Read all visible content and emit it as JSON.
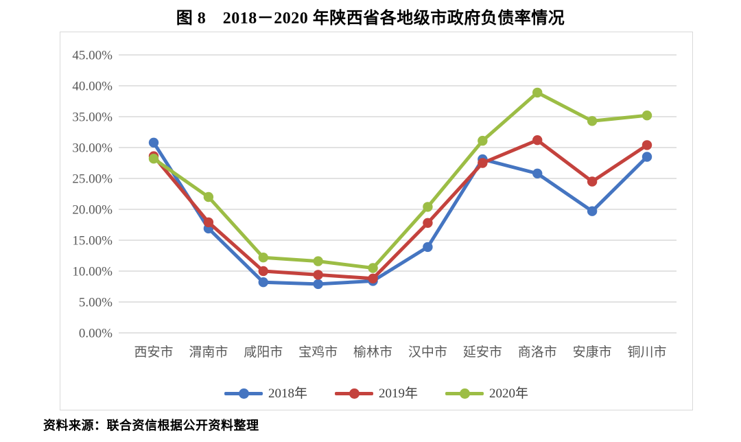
{
  "figure": {
    "title": "图 8　2018－2020 年陕西省各地级市政府负债率情况",
    "source_note": "资料来源：联合资信根据公开资料整理"
  },
  "chart_data": {
    "type": "line",
    "title": "图 8　2018－2020 年陕西省各地级市政府负债率情况",
    "categories": [
      "西安市",
      "渭南市",
      "咸阳市",
      "宝鸡市",
      "榆林市",
      "汉中市",
      "延安市",
      "商洛市",
      "安康市",
      "铜川市"
    ],
    "series": [
      {
        "name": "2018年",
        "color": "#4575C1",
        "values": [
          30.8,
          16.9,
          8.2,
          7.9,
          8.4,
          13.9,
          28.1,
          25.8,
          19.7,
          28.5
        ]
      },
      {
        "name": "2019年",
        "color": "#C4423D",
        "values": [
          28.6,
          17.9,
          10.0,
          9.4,
          8.8,
          17.8,
          27.5,
          31.2,
          24.5,
          30.4
        ]
      },
      {
        "name": "2020年",
        "color": "#9CBD45",
        "values": [
          28.2,
          22.0,
          12.2,
          11.6,
          10.5,
          20.4,
          31.1,
          38.9,
          34.3,
          35.2
        ]
      }
    ],
    "xlabel": "",
    "ylabel": "",
    "ylim": [
      0,
      45
    ],
    "ytick_step": 5,
    "ytick_labels": [
      "0.00%",
      "5.00%",
      "10.00%",
      "15.00%",
      "20.00%",
      "25.00%",
      "30.00%",
      "35.00%",
      "40.00%",
      "45.00%"
    ],
    "unit": "%",
    "grid": true,
    "marker": "circle",
    "legend_position": "bottom"
  },
  "colors": {
    "axis_text": "#595959",
    "gridline": "#d9d9d9",
    "chart_border": "#d9d9d9",
    "title_text": "#000000"
  }
}
